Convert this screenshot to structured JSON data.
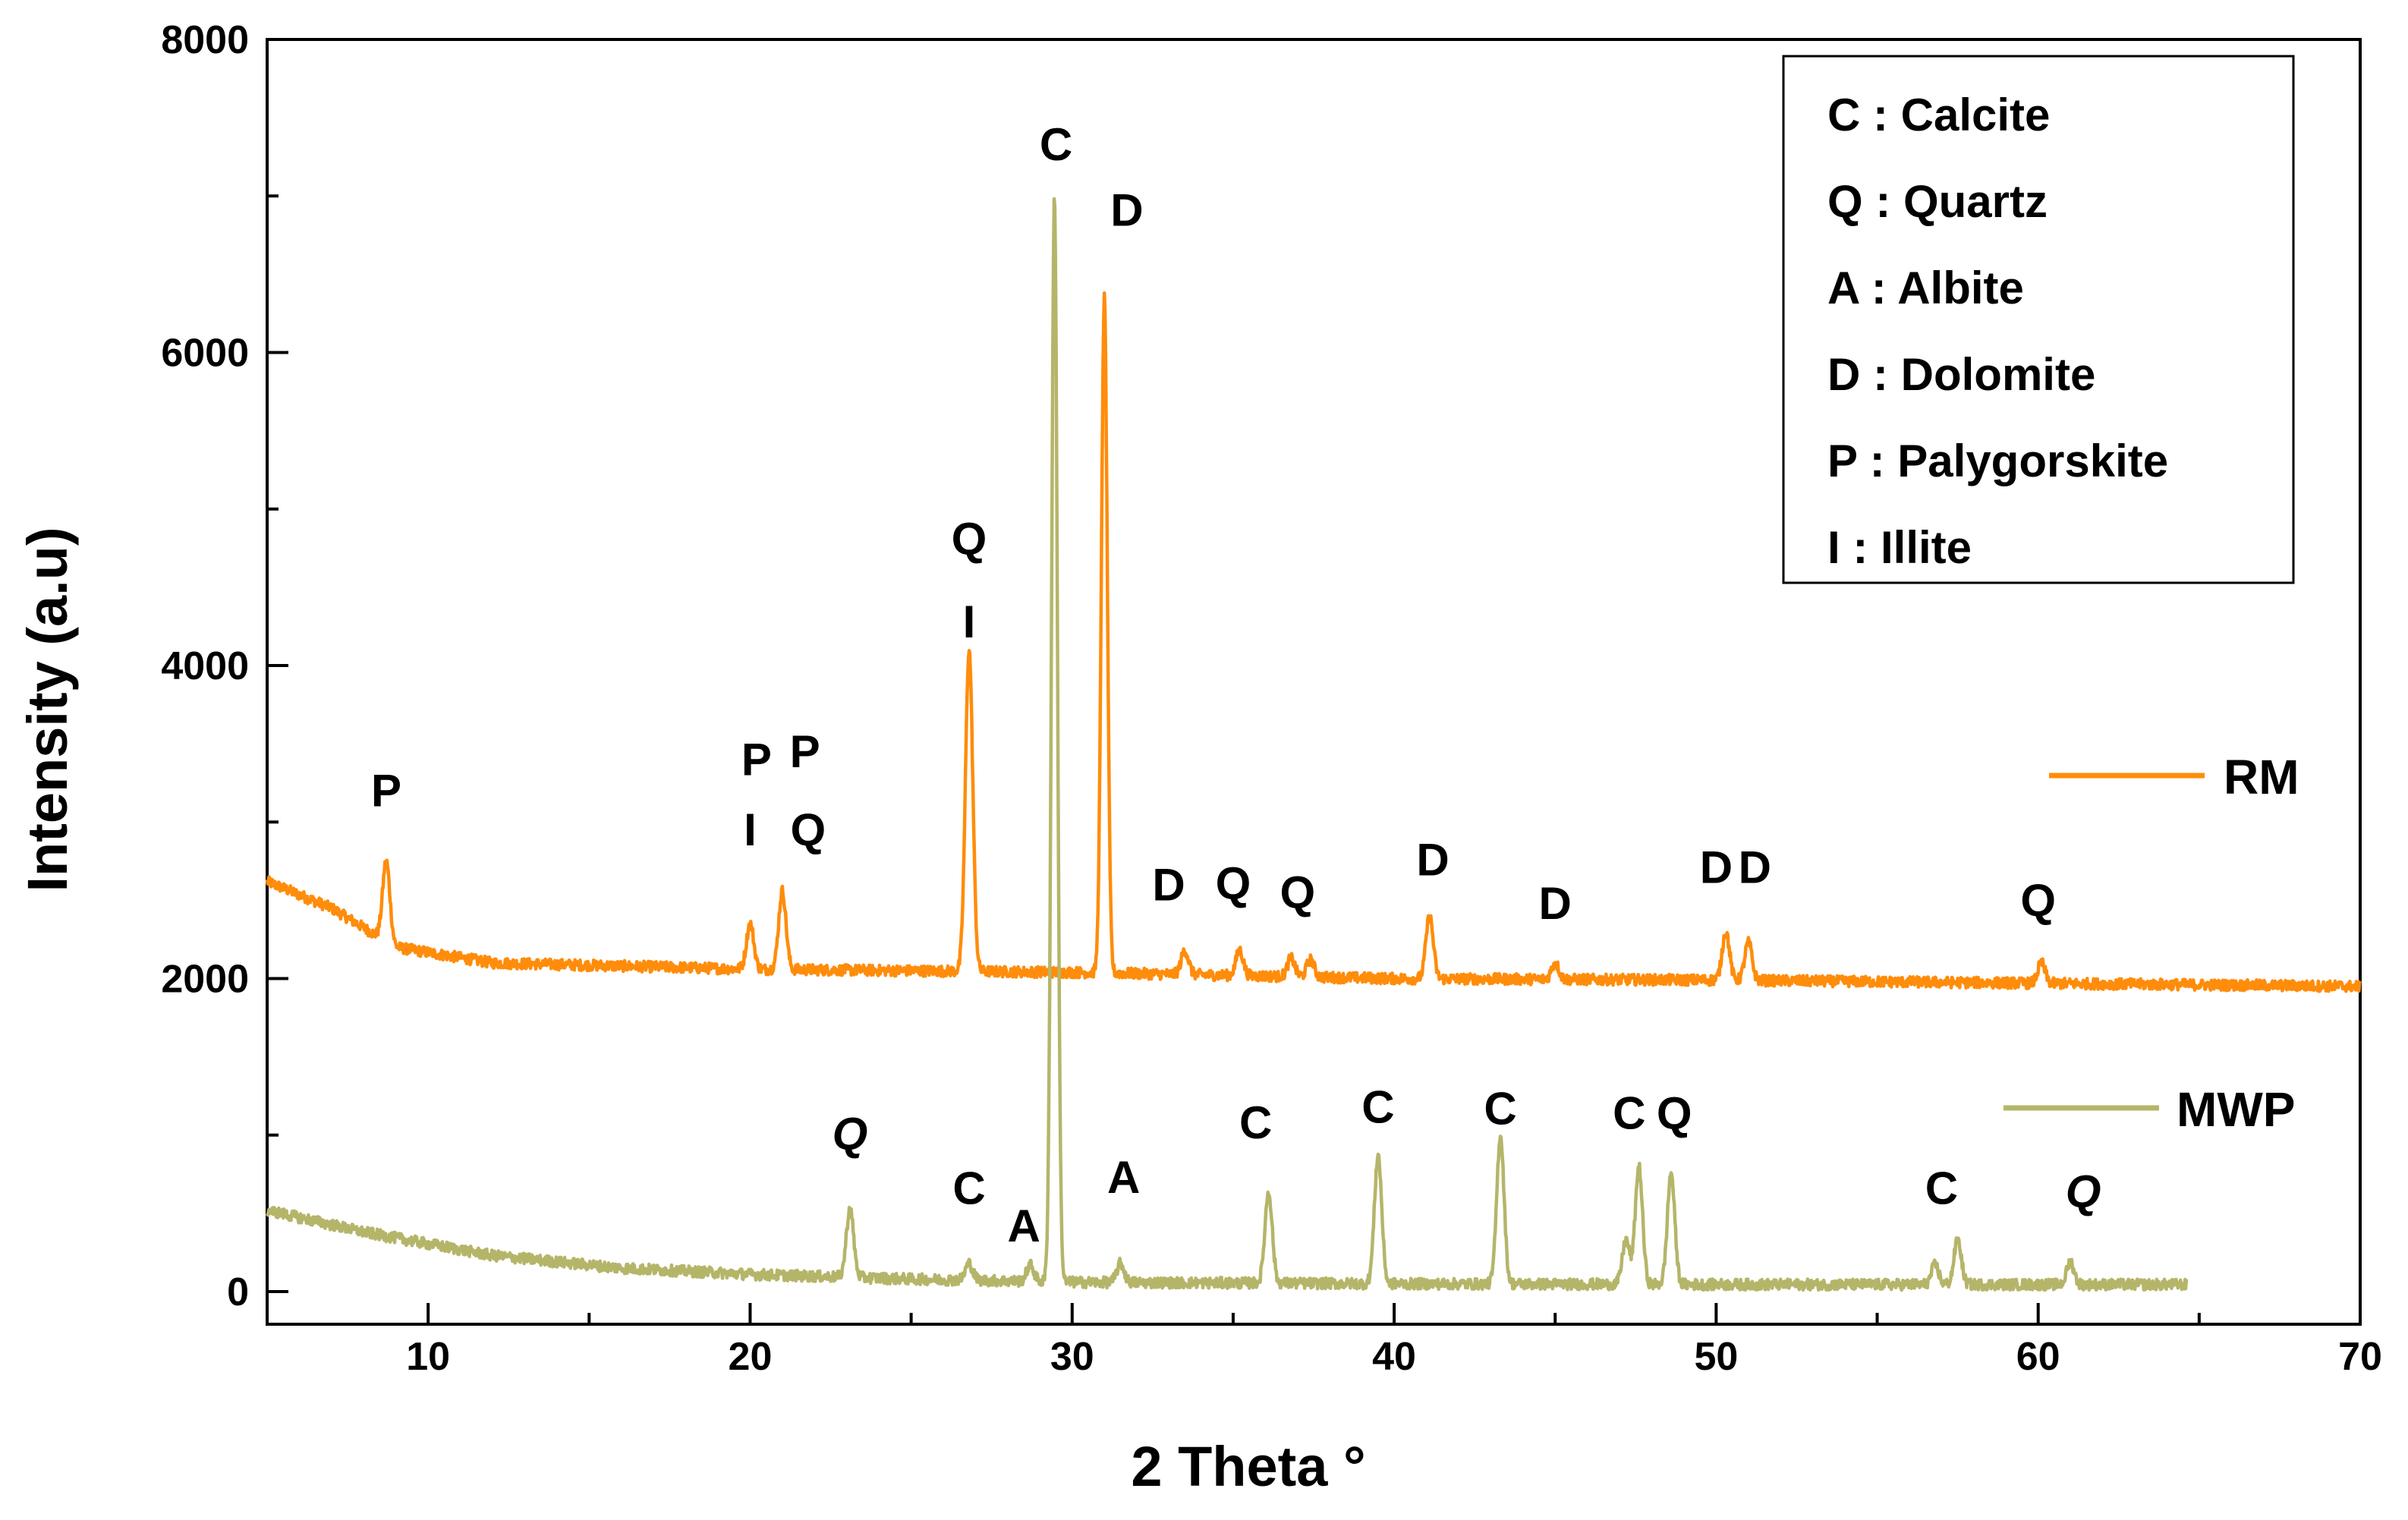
{
  "chart_data": {
    "type": "line",
    "title": "",
    "xlabel": "2 Theta °",
    "ylabel": "Intensity (a.u)",
    "xlim": [
      5,
      70
    ],
    "ylim": [
      -200,
      8000
    ],
    "x_ticks": [
      10,
      20,
      30,
      40,
      50,
      60,
      70
    ],
    "y_ticks": [
      0,
      2000,
      4000,
      6000,
      8000
    ],
    "colors": {
      "RM": "#ff8c0a",
      "MWP": "#b5b56a",
      "axis": "#000000"
    },
    "series": [
      {
        "name": "RM",
        "color": "#ff8c0a",
        "x_range": [
          5,
          70
        ],
        "baseline": [
          [
            5,
            2620
          ],
          [
            7,
            2450
          ],
          [
            9,
            2200
          ],
          [
            12,
            2100
          ],
          [
            20,
            2060
          ],
          [
            30,
            2040
          ],
          [
            40,
            2000
          ],
          [
            50,
            1990
          ],
          [
            60,
            1970
          ],
          [
            70,
            1950
          ]
        ],
        "peaks": [
          {
            "x": 8.7,
            "y": 2750
          },
          {
            "x": 20.0,
            "y": 2350
          },
          {
            "x": 21.0,
            "y": 2560
          },
          {
            "x": 26.8,
            "y": 4100
          },
          {
            "x": 31.0,
            "y": 6350
          },
          {
            "x": 33.5,
            "y": 2180
          },
          {
            "x": 35.2,
            "y": 2180
          },
          {
            "x": 36.8,
            "y": 2130
          },
          {
            "x": 37.4,
            "y": 2120
          },
          {
            "x": 41.1,
            "y": 2400
          },
          {
            "x": 45.0,
            "y": 2100
          },
          {
            "x": 50.3,
            "y": 2300
          },
          {
            "x": 51.0,
            "y": 2230
          },
          {
            "x": 60.1,
            "y": 2100
          }
        ]
      },
      {
        "name": "MWP",
        "color": "#b5b56a",
        "x_range": [
          5,
          64.6
        ],
        "baseline": [
          [
            5,
            520
          ],
          [
            8,
            380
          ],
          [
            12,
            230
          ],
          [
            16,
            150
          ],
          [
            20,
            110
          ],
          [
            25,
            80
          ],
          [
            30,
            60
          ],
          [
            40,
            50
          ],
          [
            50,
            45
          ],
          [
            60,
            45
          ],
          [
            64.6,
            45
          ]
        ],
        "peaks": [
          {
            "x": 23.1,
            "y": 530
          },
          {
            "x": 26.8,
            "y": 180
          },
          {
            "x": 28.7,
            "y": 170
          },
          {
            "x": 29.45,
            "y": 7000
          },
          {
            "x": 31.5,
            "y": 180
          },
          {
            "x": 36.1,
            "y": 640
          },
          {
            "x": 39.5,
            "y": 870
          },
          {
            "x": 43.3,
            "y": 1000
          },
          {
            "x": 47.2,
            "y": 330
          },
          {
            "x": 47.6,
            "y": 800
          },
          {
            "x": 48.6,
            "y": 760
          },
          {
            "x": 56.8,
            "y": 170
          },
          {
            "x": 57.5,
            "y": 330
          },
          {
            "x": 61.0,
            "y": 190
          }
        ]
      }
    ],
    "peak_labels": [
      {
        "text": "P",
        "x": 8.7,
        "y": 3100
      },
      {
        "text": "P",
        "x": 20.2,
        "y": 3300
      },
      {
        "text": "I",
        "x": 20.0,
        "y": 2850
      },
      {
        "text": "P",
        "x": 21.7,
        "y": 3350
      },
      {
        "text": "Q",
        "x": 21.8,
        "y": 2850
      },
      {
        "text": "Q",
        "x": 26.8,
        "y": 4710
      },
      {
        "text": "I",
        "x": 26.8,
        "y": 4180
      },
      {
        "text": "C",
        "x": 29.5,
        "y": 7230
      },
      {
        "text": "D",
        "x": 31.7,
        "y": 6810
      },
      {
        "text": "D",
        "x": 33.0,
        "y": 2500
      },
      {
        "text": "Q",
        "x": 35.0,
        "y": 2510
      },
      {
        "text": "Q",
        "x": 37.0,
        "y": 2450
      },
      {
        "text": "D",
        "x": 41.2,
        "y": 2660
      },
      {
        "text": "D",
        "x": 45.0,
        "y": 2380
      },
      {
        "text": "D",
        "x": 50.0,
        "y": 2610
      },
      {
        "text": "D",
        "x": 51.2,
        "y": 2610
      },
      {
        "text": "Q",
        "x": 60.0,
        "y": 2400
      },
      {
        "text": "Q",
        "x": 23.1,
        "y": 910,
        "italic": true
      },
      {
        "text": "C",
        "x": 26.8,
        "y": 560
      },
      {
        "text": "A",
        "x": 28.5,
        "y": 320
      },
      {
        "text": "C",
        "x": 29.5,
        "y": 7230,
        "hidden": true
      },
      {
        "text": "A",
        "x": 31.6,
        "y": 630
      },
      {
        "text": "C",
        "x": 35.7,
        "y": 980
      },
      {
        "text": "C",
        "x": 39.5,
        "y": 1080
      },
      {
        "text": "C",
        "x": 43.3,
        "y": 1070
      },
      {
        "text": "C",
        "x": 47.3,
        "y": 1040
      },
      {
        "text": "Q",
        "x": 48.7,
        "y": 1040
      },
      {
        "text": "C",
        "x": 57.0,
        "y": 560
      },
      {
        "text": "Q",
        "x": 61.4,
        "y": 540,
        "italic": true
      }
    ],
    "series_labels": [
      {
        "name": "RM",
        "text": "RM"
      },
      {
        "name": "MWP",
        "text": "MWP"
      }
    ],
    "key_box": {
      "entries": [
        "C : Calcite",
        "Q : Quartz",
        "A : Albite",
        "D : Dolomite",
        "P : Palygorskite",
        "I  : Illite"
      ]
    }
  }
}
